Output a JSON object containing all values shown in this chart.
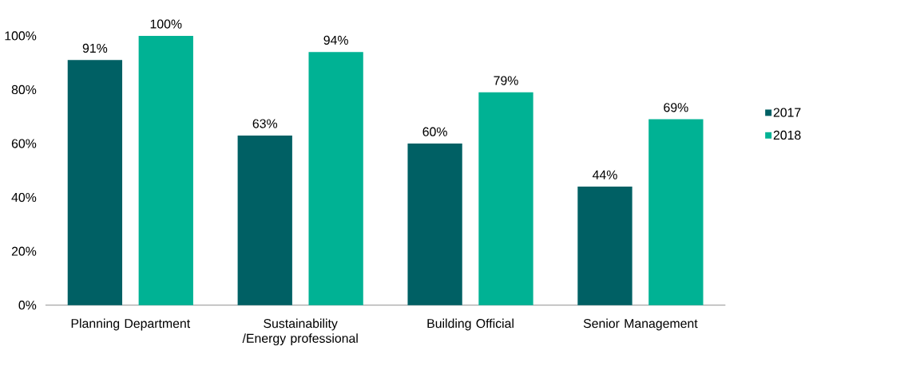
{
  "chart_data": {
    "type": "bar",
    "categories": [
      "Planning Department",
      "Sustainability /Energy professional",
      "Building Official",
      "Senior Management"
    ],
    "series": [
      {
        "name": "2017",
        "color": "#006064",
        "values": [
          91,
          63,
          60,
          44
        ],
        "value_labels": [
          "91%",
          "63%",
          "60%",
          "44%"
        ]
      },
      {
        "name": "2018",
        "color": "#00b294",
        "values": [
          100,
          94,
          79,
          69
        ],
        "value_labels": [
          "100%",
          "94%",
          "79%",
          "69%"
        ]
      }
    ],
    "ylim": [
      0,
      100
    ],
    "yticks": [
      {
        "value": 0,
        "label": "0%"
      },
      {
        "value": 20,
        "label": "20%"
      },
      {
        "value": 40,
        "label": "40%"
      },
      {
        "value": 60,
        "label": "60%"
      },
      {
        "value": 80,
        "label": "80%"
      },
      {
        "value": 100,
        "label": "100%"
      }
    ],
    "legend": "right"
  }
}
